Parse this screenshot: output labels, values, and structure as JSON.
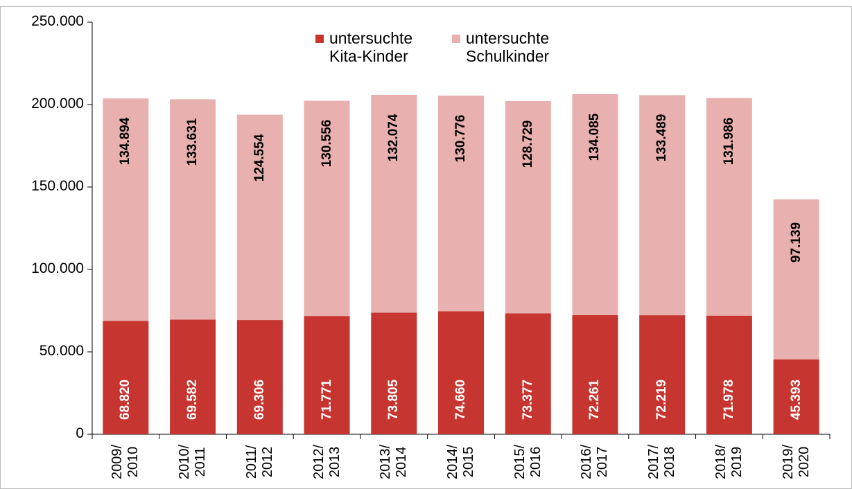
{
  "chart_data": {
    "type": "stacked_bar",
    "categories": [
      "2009/\n2010",
      "2010/\n2011",
      "2011/\n2012",
      "2012/\n2013",
      "2013/\n2014",
      "2014/\n2015",
      "2015/\n2016",
      "2016/\n2017",
      "2017/\n2018",
      "2018/\n2019",
      "2019/\n2020"
    ],
    "series": [
      {
        "name": "untersuchte\nKita-Kinder",
        "color": "#c6352f",
        "values": [
          68820,
          69582,
          69306,
          71771,
          73805,
          74660,
          73377,
          72261,
          72219,
          71978,
          45393
        ],
        "value_labels": [
          "68.820",
          "69.582",
          "69.306",
          "71.771",
          "73.805",
          "74.660",
          "73.377",
          "72.261",
          "72.219",
          "71.978",
          "45.393"
        ]
      },
      {
        "name": "untersuchte\nSchulkinder",
        "color": "#e8b0ae",
        "values": [
          134894,
          133631,
          124554,
          130556,
          132074,
          130776,
          128729,
          134085,
          133489,
          131986,
          97139
        ],
        "value_labels": [
          "134.894",
          "133.631",
          "124.554",
          "130.556",
          "132.074",
          "130.776",
          "128.729",
          "134.085",
          "133.489",
          "131.986",
          "97.139"
        ]
      }
    ],
    "ylim": [
      0,
      250000
    ],
    "yticks": [
      0,
      {
        "value": 50000,
        "label": "50.000"
      },
      {
        "value": 100000,
        "label": "100.000"
      },
      {
        "value": 150000,
        "label": "150.000"
      },
      {
        "value": 200000,
        "label": "200.000"
      },
      {
        "value": 250000,
        "label": "250.000"
      }
    ]
  }
}
